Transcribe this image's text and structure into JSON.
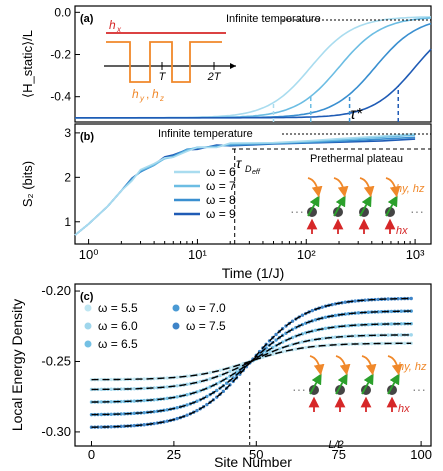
{
  "colors": {
    "c1": "#a9dcef",
    "c2": "#6cbde3",
    "c3": "#3a8fd0",
    "c4": "#1f5bb5",
    "hx": "#d62728",
    "hyz": "#f0882a",
    "dash": "#000000"
  },
  "chart_data": [
    {
      "panel": "(a)",
      "type": "line",
      "ylabel": "⟨H_static⟩/L",
      "xscale": "log",
      "xlim": [
        0.75,
        1400
      ],
      "ylim": [
        -0.52,
        0.03
      ],
      "yticks": [
        0.0,
        -0.2,
        -0.4
      ],
      "ytick_labels": [
        "0.0",
        "-0.2",
        "-0.4"
      ],
      "annotations": {
        "infinite": "Infinite temperature",
        "tau": "τ*"
      },
      "inset": {
        "hx_label": "h",
        "hx_sub": "x",
        "hyz_label": "h",
        "hyz_sub1": "y",
        "hyz_sub2": "z",
        "t1": "T",
        "t2": "2T"
      },
      "series": [
        {
          "omega": 6,
          "t_mid": 110,
          "tau": 50
        },
        {
          "omega": 7,
          "t_mid": 200,
          "tau": 110
        },
        {
          "omega": 8,
          "t_mid": 430,
          "tau": 250
        },
        {
          "omega": 9,
          "t_mid": 1000,
          "tau": 700
        }
      ]
    },
    {
      "panel": "(b)",
      "type": "line",
      "xlabel": "Time (1/J)",
      "ylabel": "S₂ (bits)",
      "xscale": "log",
      "xlim": [
        0.75,
        1400
      ],
      "ylim": [
        0.5,
        3.2
      ],
      "yticks": [
        1,
        2,
        3
      ],
      "xtick_labels": [
        "10⁰",
        "10¹",
        "10²",
        "10³"
      ],
      "annotations": {
        "infinite": "Infinite temperature",
        "prethermal": "Prethermal plateau",
        "tau_d": "τ",
        "tau_d_sub": "D",
        "tau_d_subsub": "eff",
        "hyz": "h",
        "hyz_sub": "y",
        "hyz_sub2": "z",
        "hx": "h",
        "hx_sub": "x"
      },
      "infinite_level": 3.0,
      "prethermal_level": 2.8,
      "t_D": 22,
      "legend": [
        {
          "label": "ω = 6"
        },
        {
          "label": "ω = 7"
        },
        {
          "label": "ω = 8"
        },
        {
          "label": "ω = 9"
        }
      ],
      "common_curve": {
        "t": [
          0.75,
          1,
          1.5,
          2,
          2.5,
          3,
          4,
          5,
          6,
          8,
          10,
          15,
          20
        ],
        "s2": [
          0.7,
          0.95,
          1.35,
          1.7,
          1.95,
          2.15,
          2.3,
          2.45,
          2.48,
          2.6,
          2.65,
          2.7,
          2.74
        ]
      },
      "late_series": [
        {
          "omega": 6,
          "t": [
            20,
            50,
            100,
            200,
            500,
            1000
          ],
          "s2": [
            2.74,
            2.78,
            2.82,
            2.87,
            2.93,
            2.98
          ]
        },
        {
          "omega": 7,
          "t": [
            20,
            50,
            100,
            200,
            500,
            1000
          ],
          "s2": [
            2.74,
            2.77,
            2.8,
            2.84,
            2.9,
            2.95
          ]
        },
        {
          "omega": 8,
          "t": [
            20,
            50,
            100,
            200,
            500,
            1000
          ],
          "s2": [
            2.74,
            2.76,
            2.78,
            2.81,
            2.86,
            2.9
          ]
        },
        {
          "omega": 9,
          "t": [
            20,
            50,
            100,
            200,
            500,
            1000
          ],
          "s2": [
            2.74,
            2.75,
            2.77,
            2.79,
            2.82,
            2.86
          ]
        }
      ]
    },
    {
      "panel": "(c)",
      "type": "scatter",
      "xlabel": "Site Number",
      "ylabel": "Local Energy Density",
      "xlim": [
        -5,
        103
      ],
      "ylim": [
        -0.31,
        -0.195
      ],
      "xticks": [
        0,
        25,
        50,
        75,
        100
      ],
      "yticks": [
        -0.2,
        -0.25,
        -0.3
      ],
      "ytick_labels": [
        "-0.20",
        "-0.25",
        "-0.30"
      ],
      "center_label": "L/2",
      "hyz": "h",
      "hyz_sub": "y",
      "hyz_sub2": "z",
      "hx": "h",
      "hx_sub": "x",
      "legend": [
        {
          "label": "ω = 5.5"
        },
        {
          "label": "ω = 6.0"
        },
        {
          "label": "ω = 6.5"
        },
        {
          "label": "ω = 7.0"
        },
        {
          "label": "ω = 7.5"
        }
      ],
      "series": [
        {
          "omega": 5.5,
          "left": -0.263,
          "right": -0.237
        },
        {
          "omega": 6.0,
          "left": -0.27,
          "right": -0.231
        },
        {
          "omega": 6.5,
          "left": -0.279,
          "right": -0.223
        },
        {
          "omega": 7.0,
          "left": -0.288,
          "right": -0.214
        },
        {
          "omega": 7.5,
          "left": -0.297,
          "right": -0.205
        }
      ],
      "center": 48,
      "width": 17
    }
  ]
}
